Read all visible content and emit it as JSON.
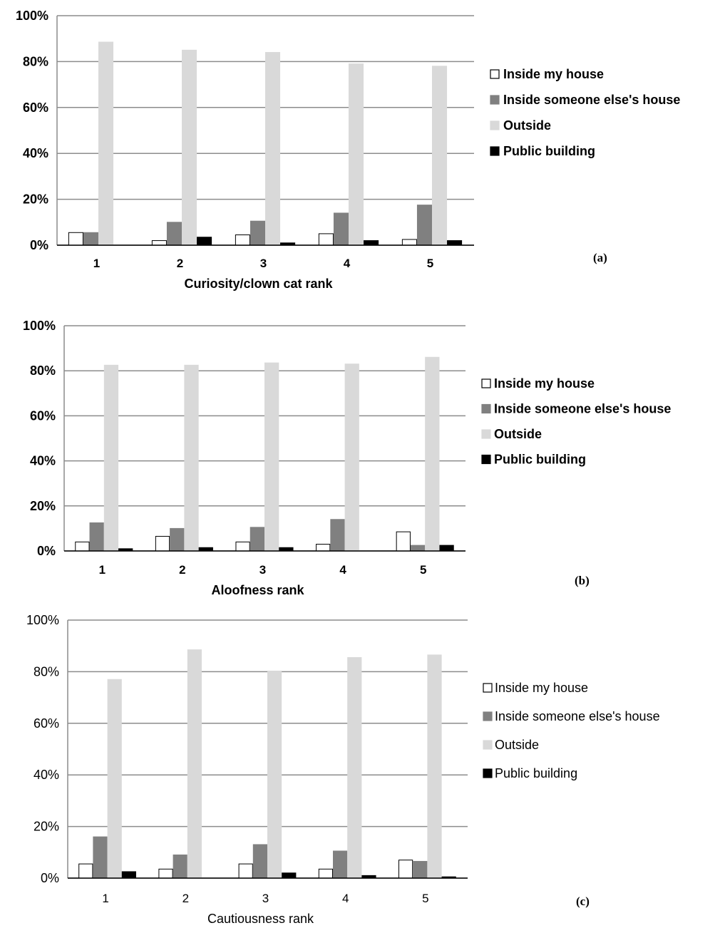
{
  "colors": {
    "Inside my house": "#ffffff",
    "Inside someone else's house": "#808080",
    "Outside": "#d9d9d9",
    "Public building": "#000000",
    "gridline": "#8c8c8c"
  },
  "chart_data": [
    {
      "type": "bar",
      "panel_label": "(a)",
      "xlabel": "Curiosity/clown cat rank",
      "ylabel": "",
      "categories": [
        "1",
        "2",
        "3",
        "4",
        "5"
      ],
      "ylim": [
        0,
        100
      ],
      "yticks": [
        "0%",
        "20%",
        "40%",
        "60%",
        "80%",
        "100%"
      ],
      "grid": true,
      "legend_position": "right",
      "series": [
        {
          "name": "Inside my house",
          "values": [
            5.5,
            2,
            4.5,
            5,
            2.5
          ]
        },
        {
          "name": "Inside someone else's house",
          "values": [
            5.5,
            10,
            10.5,
            14,
            17.5
          ]
        },
        {
          "name": "Outside",
          "values": [
            88.5,
            85,
            84,
            79,
            78
          ]
        },
        {
          "name": "Public building",
          "values": [
            0,
            3.5,
            1,
            2,
            2
          ]
        }
      ]
    },
    {
      "type": "bar",
      "panel_label": "(b)",
      "xlabel": "Aloofness rank",
      "ylabel": "",
      "categories": [
        "1",
        "2",
        "3",
        "4",
        "5"
      ],
      "ylim": [
        0,
        100
      ],
      "yticks": [
        "0%",
        "20%",
        "40%",
        "60%",
        "80%",
        "100%"
      ],
      "grid": true,
      "legend_position": "right",
      "series": [
        {
          "name": "Inside my house",
          "values": [
            4,
            6.5,
            4,
            3,
            8.5
          ]
        },
        {
          "name": "Inside someone else's house",
          "values": [
            12.5,
            10,
            10.5,
            14,
            2.5
          ]
        },
        {
          "name": "Outside",
          "values": [
            82.5,
            82.5,
            83.5,
            83,
            86
          ]
        },
        {
          "name": "Public building",
          "values": [
            1,
            1.5,
            1.5,
            0,
            2.5
          ]
        }
      ]
    },
    {
      "type": "bar",
      "panel_label": "(c)",
      "xlabel": "Cautiousness rank",
      "ylabel": "",
      "categories": [
        "1",
        "2",
        "3",
        "4",
        "5"
      ],
      "ylim": [
        0,
        100
      ],
      "yticks": [
        "0%",
        "20%",
        "40%",
        "60%",
        "80%",
        "100%"
      ],
      "grid": true,
      "legend_position": "right",
      "series": [
        {
          "name": "Inside my house",
          "values": [
            5.5,
            3.5,
            5.5,
            3.5,
            7
          ]
        },
        {
          "name": "Inside someone else's house",
          "values": [
            16,
            9,
            13,
            10.5,
            6.5
          ]
        },
        {
          "name": "Outside",
          "values": [
            77,
            88.5,
            80,
            85.5,
            86.5
          ]
        },
        {
          "name": "Public building",
          "values": [
            2.5,
            0,
            2,
            1,
            0.5
          ]
        }
      ]
    }
  ]
}
